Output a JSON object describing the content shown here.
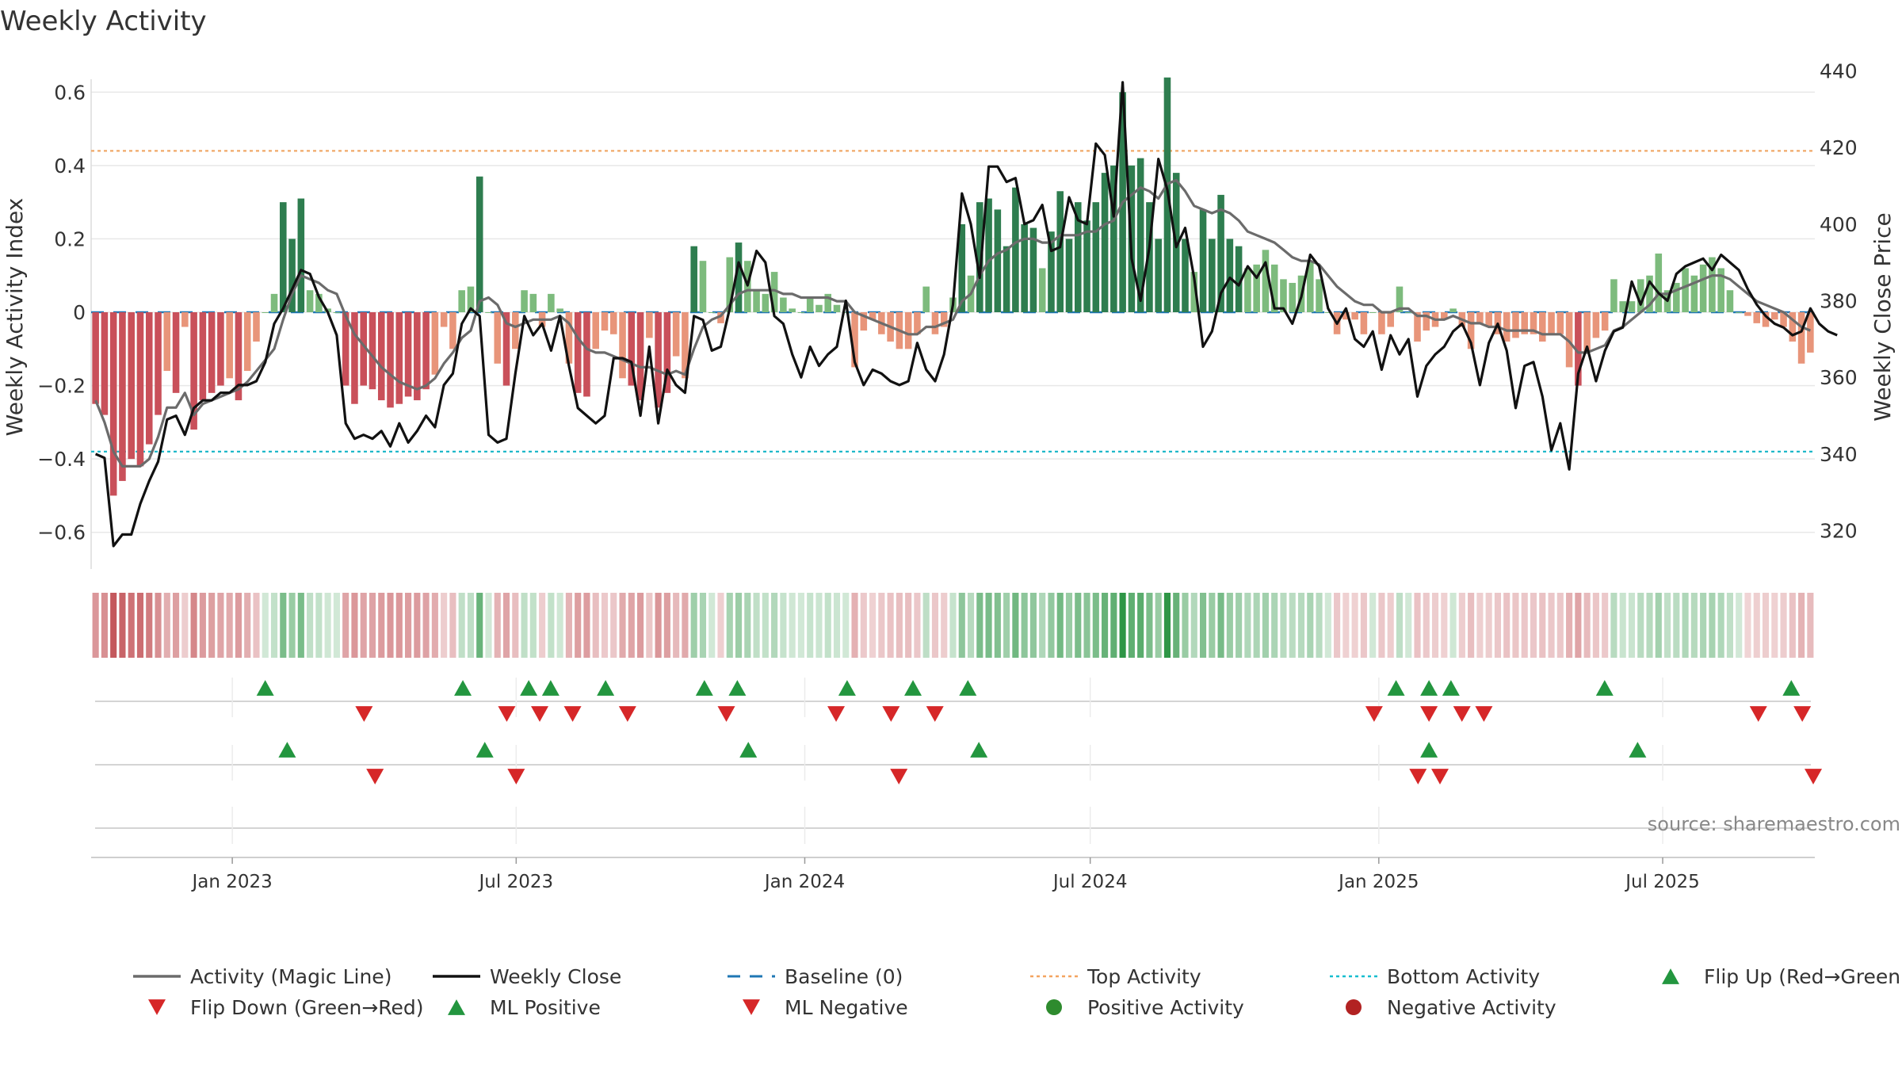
{
  "chart_data": {
    "type": "bar",
    "title": "Weekly Activity",
    "ylabel_left": "Weekly Activity Index",
    "ylabel_right": "Weekly Close Price",
    "ylim_left": [
      -0.7,
      0.7
    ],
    "ylim_right": [
      310,
      444
    ],
    "yticks_left": [
      0.6,
      0.4,
      0.2,
      0,
      -0.2,
      -0.4,
      -0.6
    ],
    "yticks_left_labels": [
      "0.6",
      "0.4",
      "0.2",
      "0",
      "−0.2",
      "−0.4",
      "−0.6"
    ],
    "yticks_right": [
      440,
      420,
      400,
      380,
      360,
      340,
      320
    ],
    "x_date_range": [
      "2022-10-03",
      "2025-10-06"
    ],
    "x_ticks": [
      {
        "date": "2023-01-01",
        "label": "Jan 2023"
      },
      {
        "date": "2023-07-01",
        "label": "Jul 2023"
      },
      {
        "date": "2024-01-01",
        "label": "Jan 2024"
      },
      {
        "date": "2024-07-01",
        "label": "Jul 2024"
      },
      {
        "date": "2025-01-01",
        "label": "Jan 2025"
      },
      {
        "date": "2025-07-01",
        "label": "Jul 2025"
      }
    ],
    "top_activity": 0.44,
    "bottom_activity": -0.38,
    "weekly_activity": [
      -0.25,
      -0.28,
      -0.5,
      -0.46,
      -0.4,
      -0.42,
      -0.36,
      -0.28,
      -0.16,
      -0.22,
      -0.04,
      -0.32,
      -0.24,
      -0.22,
      -0.2,
      -0.18,
      -0.24,
      -0.16,
      -0.08,
      0.0,
      0.05,
      0.3,
      0.2,
      0.31,
      0.06,
      0.05,
      0.01,
      0.0,
      -0.2,
      -0.25,
      -0.2,
      -0.21,
      -0.24,
      -0.26,
      -0.25,
      -0.23,
      -0.24,
      -0.21,
      -0.17,
      -0.04,
      -0.1,
      0.06,
      0.07,
      0.37,
      0.0,
      -0.14,
      -0.2,
      -0.1,
      0.06,
      0.05,
      -0.04,
      0.05,
      0.01,
      -0.14,
      -0.22,
      -0.23,
      -0.1,
      -0.05,
      -0.06,
      -0.18,
      -0.2,
      -0.24,
      -0.07,
      -0.26,
      -0.22,
      -0.12,
      -0.18,
      0.18,
      0.14,
      0.0,
      -0.03,
      0.15,
      0.19,
      0.14,
      0.06,
      0.05,
      0.11,
      0.04,
      0.01,
      0.0,
      0.04,
      0.02,
      0.05,
      0.02,
      0.0,
      -0.15,
      -0.05,
      -0.02,
      -0.06,
      -0.08,
      -0.1,
      -0.1,
      -0.06,
      0.07,
      -0.06,
      -0.04,
      0.04,
      0.24,
      0.1,
      0.3,
      0.31,
      0.28,
      0.18,
      0.34,
      0.24,
      0.23,
      0.12,
      0.22,
      0.33,
      0.2,
      0.3,
      0.25,
      0.3,
      0.38,
      0.4,
      0.6,
      0.4,
      0.42,
      0.3,
      0.2,
      0.64,
      0.38,
      0.2,
      0.11,
      0.28,
      0.2,
      0.32,
      0.2,
      0.18,
      0.12,
      0.13,
      0.17,
      0.13,
      0.09,
      0.08,
      0.1,
      0.14,
      0.09,
      0.0,
      -0.06,
      -0.02,
      -0.02,
      -0.06,
      0.0,
      -0.06,
      -0.04,
      0.07,
      0.0,
      -0.08,
      -0.05,
      -0.04,
      -0.02,
      0.01,
      -0.04,
      -0.1,
      -0.03,
      -0.04,
      -0.06,
      -0.08,
      -0.07,
      -0.06,
      -0.06,
      -0.08,
      -0.06,
      -0.06,
      -0.15,
      -0.2,
      -0.11,
      -0.07,
      -0.05,
      0.09,
      0.03,
      0.03,
      0.09,
      0.1,
      0.16,
      0.06,
      0.08,
      0.12,
      0.1,
      0.13,
      0.15,
      0.12,
      0.06,
      0.0,
      -0.01,
      -0.03,
      -0.04,
      -0.02,
      -0.04,
      -0.08,
      -0.14,
      -0.11
    ],
    "magic_line": [
      -0.24,
      -0.3,
      -0.38,
      -0.42,
      -0.42,
      -0.42,
      -0.4,
      -0.34,
      -0.26,
      -0.26,
      -0.22,
      -0.28,
      -0.25,
      -0.24,
      -0.23,
      -0.22,
      -0.21,
      -0.19,
      -0.16,
      -0.13,
      -0.1,
      -0.02,
      0.05,
      0.1,
      0.09,
      0.08,
      0.06,
      0.05,
      -0.01,
      -0.06,
      -0.09,
      -0.12,
      -0.15,
      -0.17,
      -0.19,
      -0.2,
      -0.21,
      -0.2,
      -0.18,
      -0.14,
      -0.11,
      -0.07,
      -0.05,
      0.03,
      0.04,
      0.02,
      -0.03,
      -0.04,
      -0.03,
      -0.02,
      -0.02,
      -0.02,
      -0.01,
      -0.03,
      -0.07,
      -0.1,
      -0.11,
      -0.11,
      -0.12,
      -0.13,
      -0.14,
      -0.15,
      -0.15,
      -0.16,
      -0.17,
      -0.16,
      -0.17,
      -0.1,
      -0.04,
      -0.02,
      -0.01,
      0.02,
      0.05,
      0.06,
      0.06,
      0.06,
      0.06,
      0.05,
      0.05,
      0.04,
      0.04,
      0.04,
      0.04,
      0.03,
      0.03,
      0.0,
      -0.01,
      -0.02,
      -0.03,
      -0.04,
      -0.05,
      -0.06,
      -0.06,
      -0.04,
      -0.04,
      -0.03,
      -0.02,
      0.03,
      0.05,
      0.1,
      0.14,
      0.16,
      0.17,
      0.19,
      0.2,
      0.2,
      0.19,
      0.19,
      0.21,
      0.21,
      0.21,
      0.22,
      0.22,
      0.24,
      0.25,
      0.3,
      0.32,
      0.34,
      0.33,
      0.31,
      0.35,
      0.36,
      0.33,
      0.29,
      0.28,
      0.27,
      0.28,
      0.27,
      0.25,
      0.22,
      0.21,
      0.2,
      0.19,
      0.17,
      0.15,
      0.14,
      0.14,
      0.13,
      0.1,
      0.07,
      0.05,
      0.03,
      0.02,
      0.02,
      0.0,
      0.0,
      0.01,
      0.01,
      -0.01,
      -0.01,
      -0.02,
      -0.02,
      -0.01,
      -0.02,
      -0.03,
      -0.03,
      -0.04,
      -0.04,
      -0.05,
      -0.05,
      -0.05,
      -0.05,
      -0.06,
      -0.06,
      -0.06,
      -0.08,
      -0.11,
      -0.11,
      -0.1,
      -0.09,
      -0.05,
      -0.04,
      -0.02,
      0.0,
      0.02,
      0.05,
      0.05,
      0.06,
      0.07,
      0.08,
      0.09,
      0.1,
      0.1,
      0.09,
      0.07,
      0.05,
      0.03,
      0.02,
      0.01,
      0.0,
      -0.02,
      -0.04,
      -0.05
    ],
    "weekly_close": [
      340,
      339,
      316,
      319,
      319,
      327,
      333,
      338,
      349,
      350,
      345,
      352,
      354,
      354,
      356,
      356,
      358,
      358,
      359,
      364,
      374,
      378,
      383,
      388,
      387,
      381,
      377,
      371,
      348,
      344,
      345,
      344,
      346,
      342,
      348,
      343,
      346,
      350,
      347,
      358,
      361,
      374,
      378,
      376,
      345,
      343,
      344,
      361,
      376,
      371,
      374,
      367,
      376,
      363,
      352,
      350,
      348,
      350,
      365,
      365,
      364,
      350,
      368,
      348,
      362,
      358,
      356,
      376,
      375,
      367,
      368,
      378,
      390,
      384,
      393,
      390,
      376,
      374,
      366,
      360,
      368,
      363,
      366,
      368,
      380,
      364,
      358,
      362,
      361,
      359,
      358,
      359,
      369,
      362,
      359,
      366,
      379,
      408,
      400,
      386,
      415,
      415,
      411,
      412,
      400,
      401,
      405,
      393,
      394,
      407,
      401,
      400,
      421,
      418,
      402,
      437,
      391,
      380,
      394,
      417,
      409,
      394,
      399,
      386,
      368,
      372,
      382,
      386,
      384,
      389,
      386,
      390,
      378,
      378,
      374,
      381,
      392,
      389,
      378,
      374,
      378,
      370,
      368,
      372,
      362,
      371,
      366,
      370,
      355,
      363,
      366,
      368,
      372,
      374,
      369,
      358,
      369,
      374,
      367,
      352,
      363,
      364,
      355,
      341,
      348,
      336,
      361,
      368,
      359,
      367,
      372,
      373,
      385,
      379,
      385,
      382,
      380,
      387,
      389,
      390,
      391,
      388,
      392,
      390,
      388,
      383,
      379,
      376,
      374,
      373,
      371,
      372,
      378,
      374,
      372,
      371
    ],
    "flip_row1_up": [
      "2023-01-22",
      "2023-05-28",
      "2023-07-09",
      "2023-07-23",
      "2023-08-27",
      "2023-10-29",
      "2023-11-19",
      "2024-01-28",
      "2024-03-10",
      "2024-04-14",
      "2025-01-12",
      "2025-02-02",
      "2025-02-16",
      "2025-05-25",
      "2025-09-21"
    ],
    "flip_row1_down": [
      "2023-03-26",
      "2023-06-25",
      "2023-07-16",
      "2023-08-06",
      "2023-09-10",
      "2023-11-12",
      "2024-01-21",
      "2024-02-25",
      "2024-03-24",
      "2024-12-29",
      "2025-02-02",
      "2025-02-23",
      "2025-03-09",
      "2025-08-31",
      "2025-09-28"
    ],
    "flip_row2_up": [
      "2023-02-05",
      "2023-06-11",
      "2023-11-26",
      "2024-04-21",
      "2025-02-02",
      "2025-06-15"
    ],
    "flip_row2_down": [
      "2023-04-02",
      "2023-07-01",
      "2024-03-01",
      "2025-01-26",
      "2025-02-09",
      "2025-10-05"
    ],
    "source": "source: sharemaestro.com",
    "legend": [
      {
        "label": "Activity (Magic Line)",
        "style": "line",
        "color": "#6b6b6b"
      },
      {
        "label": "Weekly Close",
        "style": "line",
        "color": "#111111"
      },
      {
        "label": "Baseline (0)",
        "style": "dash",
        "color": "#1f77b4"
      },
      {
        "label": "Top Activity",
        "style": "dot",
        "color": "#f4a460"
      },
      {
        "label": "Bottom Activity",
        "style": "dot",
        "color": "#17becf"
      },
      {
        "label": "Flip Up (Red→Green)",
        "style": "tri-up",
        "color": "#23963f"
      },
      {
        "label": "Flip Down (Green→Red)",
        "style": "tri-down",
        "color": "#d62728"
      },
      {
        "label": "ML Positive",
        "style": "tri-up",
        "color": "#23963f"
      },
      {
        "label": "ML Negative",
        "style": "tri-down",
        "color": "#d62728"
      },
      {
        "label": "Positive Activity",
        "style": "circle",
        "color": "#2e8b2e"
      },
      {
        "label": "Negative Activity",
        "style": "circle",
        "color": "#b22222"
      }
    ],
    "colors": {
      "pos_dark": "#2e7d4f",
      "pos_light": "#7dbb7d",
      "neg_dark": "#c9505a",
      "neg_light": "#e8957a",
      "grid": "#e8e8e8",
      "axis": "#cccccc",
      "text": "#333333"
    }
  }
}
